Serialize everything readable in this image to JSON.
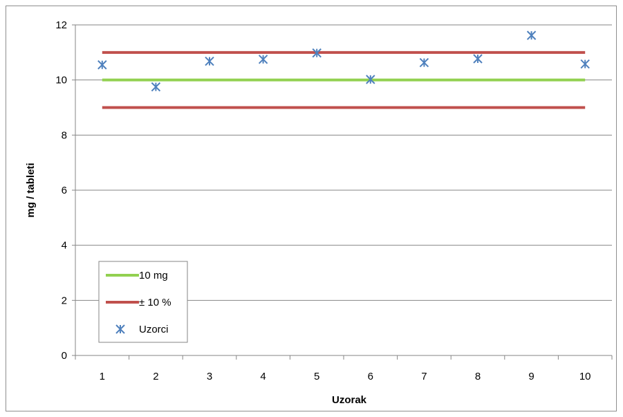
{
  "chart_data": {
    "type": "scatter",
    "title": "",
    "xlabel": "Uzorak",
    "ylabel": "mg / tableti",
    "xlim": [
      0.5,
      10.5
    ],
    "ylim": [
      0,
      12
    ],
    "yticks": [
      0,
      2,
      4,
      6,
      8,
      10,
      12
    ],
    "x": [
      1,
      2,
      3,
      4,
      5,
      6,
      7,
      8,
      9,
      10
    ],
    "xtick_labels": [
      "1",
      "2",
      "3",
      "4",
      "5",
      "6",
      "7",
      "8",
      "9",
      "10"
    ],
    "grid": "horizontal",
    "legend_position": "bottom-left",
    "series": [
      {
        "name": "10 mg",
        "kind": "line",
        "color": "#92d050",
        "x": [
          1,
          10
        ],
        "values": [
          10,
          10
        ]
      },
      {
        "name": "± 10 %",
        "kind": "line",
        "color": "#c0504d",
        "x": [
          1,
          10
        ],
        "values": [
          11,
          11
        ]
      },
      {
        "name": "",
        "kind": "line",
        "color": "#c0504d",
        "x": [
          1,
          10
        ],
        "values": [
          9,
          9
        ]
      },
      {
        "name": "Uzorci",
        "kind": "scatter",
        "color": "#4f81bd",
        "marker": "asterisk",
        "x": [
          1,
          2,
          3,
          4,
          5,
          6,
          7,
          8,
          9,
          10
        ],
        "values": [
          10.55,
          9.75,
          10.68,
          10.75,
          10.98,
          10.02,
          10.63,
          10.77,
          11.62,
          10.58
        ]
      }
    ]
  }
}
